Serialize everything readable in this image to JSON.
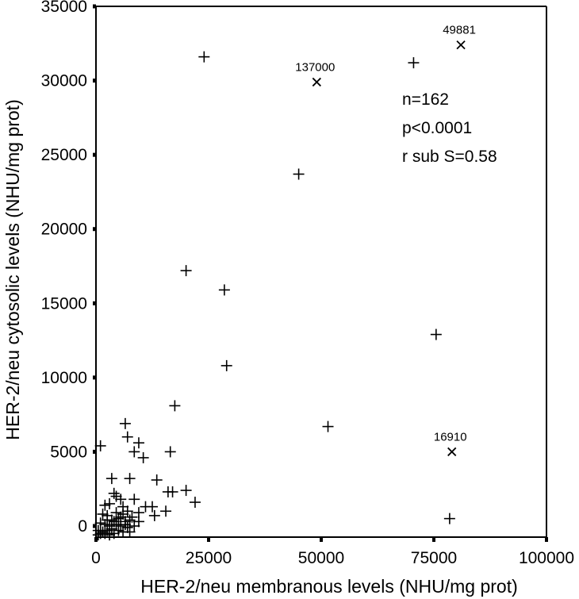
{
  "chart_data": {
    "type": "scatter",
    "xlabel": "HER-2/neu membranous levels (NHU/mg prot)",
    "ylabel": "HER-2/neu cytosolic levels (NHU/mg prot)",
    "xlim": [
      0,
      100000
    ],
    "ylim": [
      0,
      35000
    ],
    "xticks": [
      0,
      25000,
      50000,
      75000,
      100000
    ],
    "yticks": [
      0,
      5000,
      10000,
      15000,
      20000,
      25000,
      30000,
      35000
    ],
    "xtick_labels": [
      "0",
      "25000",
      "50000",
      "75000",
      "100000"
    ],
    "ytick_labels": [
      "0",
      "5000",
      "10000",
      "15000",
      "20000",
      "25000",
      "30000",
      "35000"
    ],
    "grid": false,
    "stats": [
      "n=162",
      "p<0.0001",
      "r sub S=0.58"
    ],
    "marker_plus": "+",
    "marker_x": "x",
    "points": [
      {
        "x": 24000,
        "y": 31600
      },
      {
        "x": 70500,
        "y": 31200
      },
      {
        "x": 45000,
        "y": 23700
      },
      {
        "x": 20000,
        "y": 17200
      },
      {
        "x": 28500,
        "y": 15900
      },
      {
        "x": 75500,
        "y": 12900
      },
      {
        "x": 29000,
        "y": 10800
      },
      {
        "x": 17500,
        "y": 8100
      },
      {
        "x": 51500,
        "y": 6700
      },
      {
        "x": 6500,
        "y": 6900
      },
      {
        "x": 1000,
        "y": 5400
      },
      {
        "x": 7000,
        "y": 6000
      },
      {
        "x": 9500,
        "y": 5600
      },
      {
        "x": 8500,
        "y": 5000
      },
      {
        "x": 10500,
        "y": 4600
      },
      {
        "x": 16500,
        "y": 5000
      },
      {
        "x": 3500,
        "y": 3200
      },
      {
        "x": 7500,
        "y": 3200
      },
      {
        "x": 13500,
        "y": 3100
      },
      {
        "x": 16000,
        "y": 2300
      },
      {
        "x": 17000,
        "y": 2300
      },
      {
        "x": 20000,
        "y": 2400
      },
      {
        "x": 22000,
        "y": 1600
      },
      {
        "x": 15500,
        "y": 1000
      },
      {
        "x": 12500,
        "y": 1300
      },
      {
        "x": 11000,
        "y": 1300
      },
      {
        "x": 13000,
        "y": 700
      },
      {
        "x": 78500,
        "y": 500
      },
      {
        "x": 4000,
        "y": 2200
      },
      {
        "x": 4500,
        "y": 2000
      },
      {
        "x": 5500,
        "y": 1800
      },
      {
        "x": 8500,
        "y": 1800
      },
      {
        "x": 2000,
        "y": 1400
      },
      {
        "x": 3000,
        "y": 1500
      },
      {
        "x": 6000,
        "y": 1300
      },
      {
        "x": 7000,
        "y": 1000
      },
      {
        "x": 9500,
        "y": 900
      },
      {
        "x": 1500,
        "y": 800
      },
      {
        "x": 2500,
        "y": 700
      },
      {
        "x": 4500,
        "y": 900
      },
      {
        "x": 5500,
        "y": 600
      },
      {
        "x": 8000,
        "y": 600
      },
      {
        "x": 9500,
        "y": 300
      },
      {
        "x": 3500,
        "y": 400
      },
      {
        "x": 6500,
        "y": 300
      },
      {
        "x": 1000,
        "y": 200
      },
      {
        "x": 2000,
        "y": 100
      },
      {
        "x": 3000,
        "y": 0
      },
      {
        "x": 4500,
        "y": 100
      },
      {
        "x": 5500,
        "y": 0
      },
      {
        "x": 7000,
        "y": -100
      },
      {
        "x": 8500,
        "y": 0
      },
      {
        "x": 500,
        "y": -300
      },
      {
        "x": 1500,
        "y": -400
      },
      {
        "x": 2500,
        "y": -300
      },
      {
        "x": 4000,
        "y": -500
      },
      {
        "x": 6000,
        "y": -400
      },
      {
        "x": 500,
        "y": -600
      },
      {
        "x": 1000,
        "y": -500
      },
      {
        "x": 3000,
        "y": -600
      },
      {
        "x": 5000,
        "y": -300
      },
      {
        "x": 7500,
        "y": -400
      },
      {
        "x": 2000,
        "y": -500
      },
      {
        "x": 3500,
        "y": -200
      },
      {
        "x": 6500,
        "y": 100
      },
      {
        "x": 4000,
        "y": 300
      },
      {
        "x": 5000,
        "y": 500
      },
      {
        "x": 2500,
        "y": 400
      },
      {
        "x": 6000,
        "y": 800
      },
      {
        "x": 7500,
        "y": 400
      }
    ],
    "outliers": [
      {
        "x": 81000,
        "y": 32400,
        "label": "49881"
      },
      {
        "x": 49000,
        "y": 29900,
        "label": "137000"
      },
      {
        "x": 79000,
        "y": 5000,
        "label": "16910"
      }
    ]
  }
}
